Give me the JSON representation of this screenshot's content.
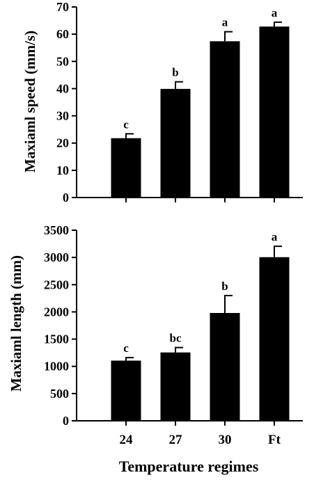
{
  "chart_data": [
    {
      "type": "bar",
      "categories": [
        "24",
        "27",
        "30",
        "Ft"
      ],
      "values": [
        21.8,
        39.9,
        57.4,
        62.8
      ],
      "errors": [
        1.6,
        2.6,
        3.5,
        1.6
      ],
      "letters": [
        "c",
        "b",
        "a",
        "a"
      ],
      "ylabel": "Maxiaml speed (mm/s)",
      "xlabel": "",
      "ylim": [
        0,
        70
      ],
      "yticks": [
        0,
        10,
        20,
        30,
        40,
        50,
        60,
        70
      ],
      "show_tick_labels": false
    },
    {
      "type": "bar",
      "categories": [
        "24",
        "27",
        "30",
        "Ft"
      ],
      "values": [
        1105,
        1255,
        1980,
        3005
      ],
      "errors": [
        55,
        90,
        320,
        200
      ],
      "letters": [
        "c",
        "bc",
        "b",
        "a"
      ],
      "ylabel": "Maxiaml length (mm)",
      "xlabel": "Temperature regimes",
      "ylim": [
        0,
        3500
      ],
      "yticks": [
        0,
        500,
        1000,
        1500,
        2000,
        2500,
        3000,
        3500
      ],
      "show_tick_labels": true
    }
  ],
  "colors": {
    "bar": "#000000",
    "axis": "#000000",
    "background": "#ffffff"
  }
}
